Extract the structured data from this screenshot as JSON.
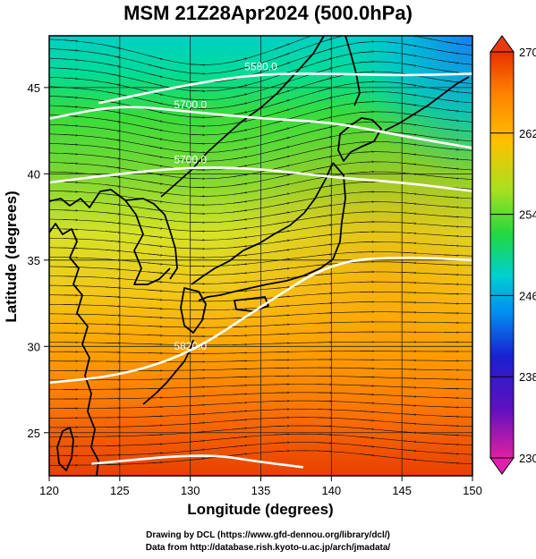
{
  "title": "MSM 21Z28Apr2024 (500.0hPa)",
  "x_axis": {
    "label": "Longitude (degrees)",
    "range": [
      120,
      150
    ],
    "ticks": [
      "120",
      "125",
      "130",
      "135",
      "140",
      "145",
      "150"
    ]
  },
  "y_axis": {
    "label": "Latitude  (degrees)",
    "range": [
      22.5,
      48
    ],
    "ticks": [
      "25",
      "30",
      "35",
      "40",
      "45"
    ]
  },
  "colorbar": {
    "range": [
      230,
      270
    ],
    "tick_labels": [
      "270",
      "262",
      "254",
      "246",
      "238",
      "230"
    ],
    "colors": [
      "#e02080",
      "#1a10c0",
      "#00a0f0",
      "#00d0c0",
      "#30d030",
      "#d8e020",
      "#ffa000",
      "#e84000"
    ]
  },
  "contours": [
    {
      "label": "5580.0",
      "lat_at": [
        [
          123.5,
          44.1
        ],
        [
          130,
          45.2
        ],
        [
          135,
          45.8
        ],
        [
          140,
          45.8
        ],
        [
          145,
          45.7
        ],
        [
          150,
          45.8
        ]
      ]
    },
    {
      "label": "5700.0",
      "lat_at": [
        [
          120,
          43.2
        ],
        [
          125,
          44.0
        ],
        [
          130,
          43.6
        ],
        [
          135,
          43.2
        ],
        [
          140,
          43.0
        ],
        [
          145,
          42.2
        ],
        [
          150,
          41.5
        ]
      ]
    },
    {
      "label": "5700.0",
      "lat_at": [
        [
          120,
          39.5
        ],
        [
          125,
          40.0
        ],
        [
          130,
          40.4
        ],
        [
          135,
          40.3
        ],
        [
          140,
          39.8
        ],
        [
          145,
          39.5
        ],
        [
          150,
          39.0
        ]
      ]
    },
    {
      "label": "5820.0",
      "lat_at": [
        [
          120,
          27.9
        ],
        [
          125,
          28.3
        ],
        [
          130,
          29.6
        ],
        [
          135,
          32.3
        ],
        [
          140,
          34.9
        ],
        [
          145,
          35.2
        ],
        [
          150,
          35.0
        ]
      ]
    },
    {
      "label": "",
      "lat_at": [
        [
          123,
          23.2
        ],
        [
          131,
          23.8
        ],
        [
          135,
          23.3
        ],
        [
          138,
          23.0
        ]
      ]
    }
  ],
  "credits": [
    "Drawing by DCL (https://www.gfd-dennou.org/library/dcl/)",
    "Data from http://database.rish.kyoto-u.ac.jp/arch/jmadata/"
  ]
}
